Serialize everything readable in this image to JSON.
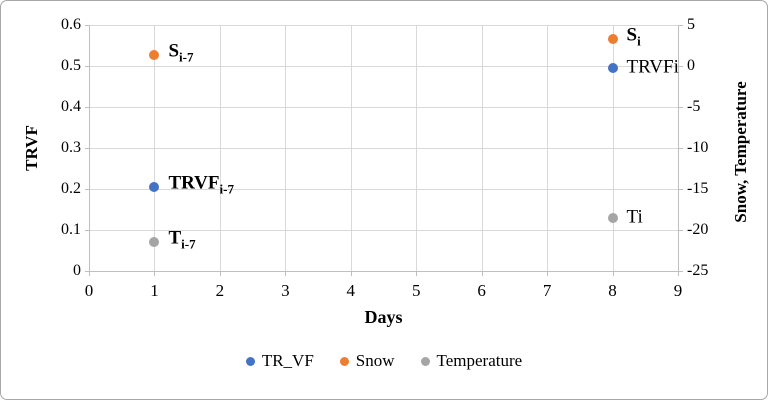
{
  "figure": {
    "background": "#ffffff",
    "border_color": "#a8a8a8"
  },
  "colors": {
    "gridline": "#d9d9d9",
    "axis_line": "#bfbfbf",
    "text": "#000000"
  },
  "chart_data": {
    "type": "scatter",
    "title": "",
    "x_axis": {
      "label": "Days",
      "min": 0,
      "max": 9,
      "tick_step": 1,
      "ticks": [
        "0",
        "1",
        "2",
        "3",
        "4",
        "5",
        "6",
        "7",
        "8",
        "9"
      ]
    },
    "y_axis_left": {
      "label": "TRVF",
      "min": 0,
      "max": 0.6,
      "tick_step": 0.1,
      "ticks": [
        "0.6",
        "0.5",
        "0.4",
        "0.3",
        "0.2",
        "0.1",
        "0"
      ]
    },
    "y_axis_right": {
      "label": "Snow, Temperature",
      "min": -25,
      "max": 5,
      "tick_step": 5,
      "ticks": [
        "5",
        "0",
        "-5",
        "-10",
        "-15",
        "-20",
        "-25"
      ]
    },
    "gridlines": true,
    "series": [
      {
        "name": "TR_VF",
        "color": "#4472C4",
        "axis": "left",
        "points": [
          {
            "x": 1,
            "y": 0.205,
            "label": "TRVF",
            "label_sub": "i-7",
            "label_bold": true
          },
          {
            "x": 8,
            "y": 0.495,
            "label": "TRVFi",
            "label_sub": "",
            "label_bold": false
          }
        ]
      },
      {
        "name": "Snow",
        "color": "#ED7D31",
        "axis": "right",
        "points": [
          {
            "x": 1,
            "y": 1.3,
            "label": "S",
            "label_sub": "i-7",
            "label_bold": true
          },
          {
            "x": 8,
            "y": 3.3,
            "label": "S",
            "label_sub": "i",
            "label_bold": true
          }
        ]
      },
      {
        "name": "Temperature",
        "color": "#A5A5A5",
        "axis": "right",
        "points": [
          {
            "x": 1,
            "y": -21.5,
            "label": "T",
            "label_sub": "i-7",
            "label_bold": true
          },
          {
            "x": 8,
            "y": -18.5,
            "label": "Ti",
            "label_sub": "",
            "label_bold": false
          }
        ]
      }
    ],
    "legend": {
      "position": "bottom",
      "items": [
        {
          "label": "TR_VF",
          "color": "#4472C4"
        },
        {
          "label": "Snow",
          "color": "#ED7D31"
        },
        {
          "label": "Temperature",
          "color": "#A5A5A5"
        }
      ]
    }
  }
}
